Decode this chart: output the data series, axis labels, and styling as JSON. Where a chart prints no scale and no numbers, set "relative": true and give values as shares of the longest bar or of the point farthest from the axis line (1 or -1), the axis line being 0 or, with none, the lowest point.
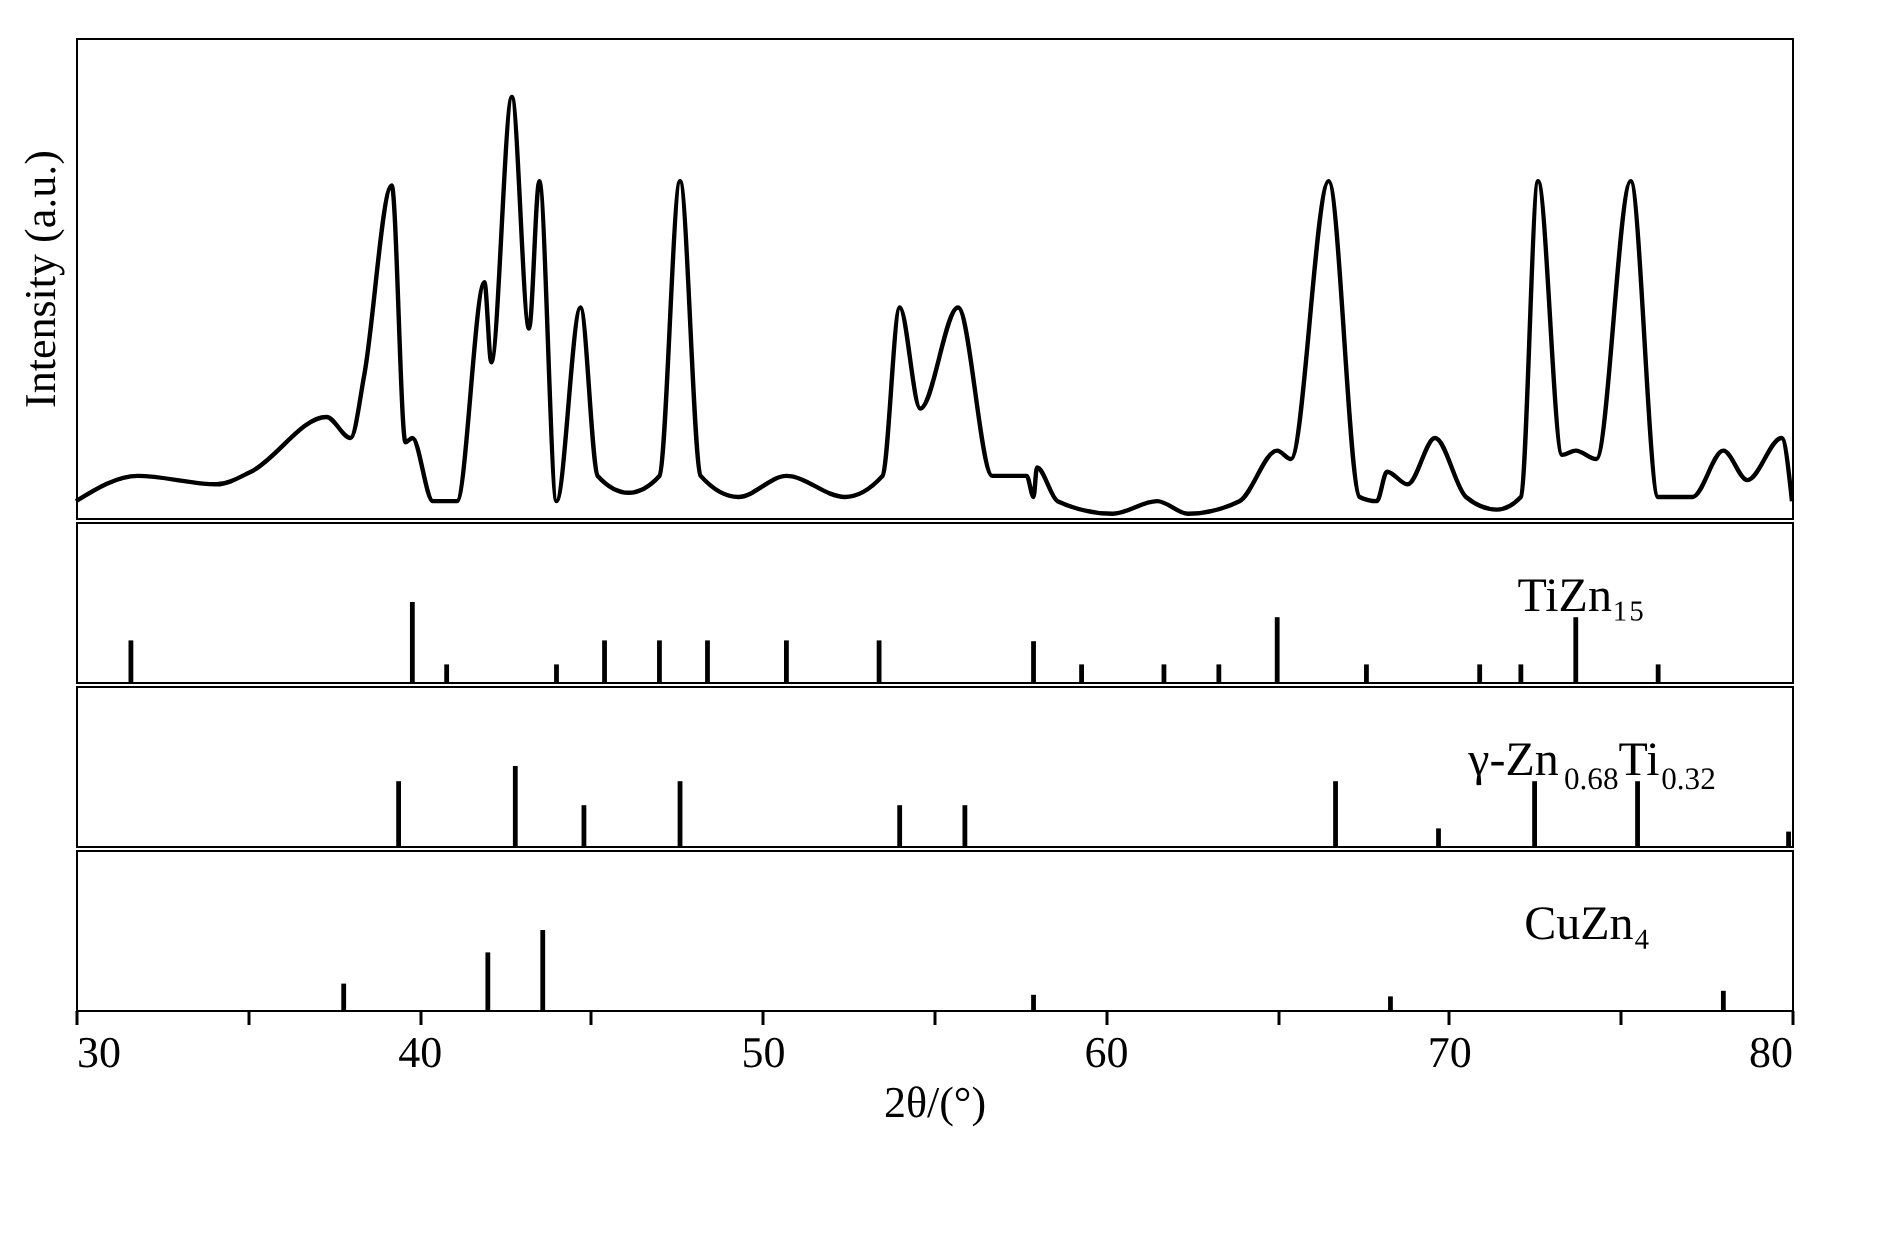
{
  "chart_data": [
    {
      "type": "line",
      "relative": true,
      "ylabel": "Intensity (a.u.)",
      "xlim": [
        30,
        80
      ],
      "tick_labels": false,
      "series": [
        {
          "color": "#000000",
          "x": [
            30.0,
            31.8,
            34.1,
            35.1,
            37.3,
            38.0,
            38.4,
            39.2,
            39.6,
            39.8,
            40.4,
            41.1,
            41.9,
            42.1,
            42.7,
            43.2,
            43.5,
            44.0,
            44.7,
            45.2,
            46.1,
            47.0,
            47.6,
            48.2,
            49.3,
            50.7,
            52.4,
            53.5,
            54.0,
            54.6,
            55.7,
            56.7,
            57.7,
            57.9,
            58.0,
            58.6,
            60.2,
            61.5,
            62.4,
            63.9,
            65.0,
            65.4,
            66.5,
            67.4,
            67.9,
            68.2,
            68.8,
            69.6,
            70.5,
            71.4,
            72.1,
            72.6,
            73.3,
            73.7,
            74.3,
            75.3,
            76.1,
            77.1,
            78.0,
            78.7,
            79.7,
            80.0
          ],
          "values": [
            0.04,
            0.1,
            0.08,
            0.11,
            0.24,
            0.19,
            0.34,
            0.79,
            0.18,
            0.19,
            0.04,
            0.04,
            0.56,
            0.37,
            1.0,
            0.45,
            0.8,
            0.04,
            0.5,
            0.1,
            0.06,
            0.1,
            0.8,
            0.1,
            0.05,
            0.1,
            0.05,
            0.1,
            0.5,
            0.26,
            0.5,
            0.1,
            0.1,
            0.05,
            0.12,
            0.04,
            0.01,
            0.04,
            0.01,
            0.04,
            0.16,
            0.14,
            0.8,
            0.05,
            0.04,
            0.11,
            0.08,
            0.19,
            0.05,
            0.02,
            0.05,
            0.8,
            0.15,
            0.16,
            0.14,
            0.8,
            0.05,
            0.05,
            0.16,
            0.09,
            0.19,
            0.04
          ]
        }
      ]
    },
    {
      "type": "bar",
      "relative": true,
      "xlim": [
        30,
        80
      ],
      "tick_labels": false,
      "series": [
        {
          "name": "TiZn₁₅",
          "color": "#000000",
          "x": [
            31.6,
            39.8,
            40.8,
            44.0,
            45.4,
            47.0,
            48.4,
            50.7,
            53.4,
            57.9,
            59.3,
            61.7,
            63.3,
            65.0,
            67.6,
            70.9,
            72.1,
            73.7,
            76.1
          ],
          "values": [
            0.52,
            1.0,
            0.22,
            0.22,
            0.52,
            0.52,
            0.52,
            0.52,
            0.52,
            0.51,
            0.22,
            0.22,
            0.22,
            0.81,
            0.22,
            0.22,
            0.22,
            0.81,
            0.22
          ]
        }
      ]
    },
    {
      "type": "bar",
      "relative": true,
      "xlim": [
        30,
        80
      ],
      "tick_labels": false,
      "series": [
        {
          "name": "γ-Zn$_{0.68}$Ti$_{0.32}$",
          "color": "#000000",
          "x": [
            39.4,
            42.8,
            44.8,
            47.6,
            54.0,
            55.9,
            66.7,
            69.7,
            72.5,
            75.5,
            79.9
          ],
          "values": [
            0.81,
            1.0,
            0.51,
            0.81,
            0.51,
            0.51,
            0.81,
            0.22,
            0.81,
            0.81,
            0.18
          ]
        }
      ]
    },
    {
      "type": "bar",
      "relative": true,
      "xlabel": "2θ/(°)",
      "xlim": [
        30,
        80
      ],
      "tick_labels": "x",
      "xticks": [
        30,
        {
          "value": 35,
          "label": null
        },
        40,
        {
          "value": 45,
          "label": null
        },
        50,
        {
          "value": 55,
          "label": null
        },
        60,
        {
          "value": 65,
          "label": null
        },
        70,
        {
          "value": 75,
          "label": null
        },
        80
      ],
      "series": [
        {
          "name": "CuZn₄",
          "color": "#000000",
          "x": [
            37.8,
            42.0,
            43.6,
            57.9,
            68.3,
            78.0
          ],
          "values": [
            0.33,
            0.72,
            1.0,
            0.19,
            0.17,
            0.24
          ]
        }
      ]
    }
  ]
}
